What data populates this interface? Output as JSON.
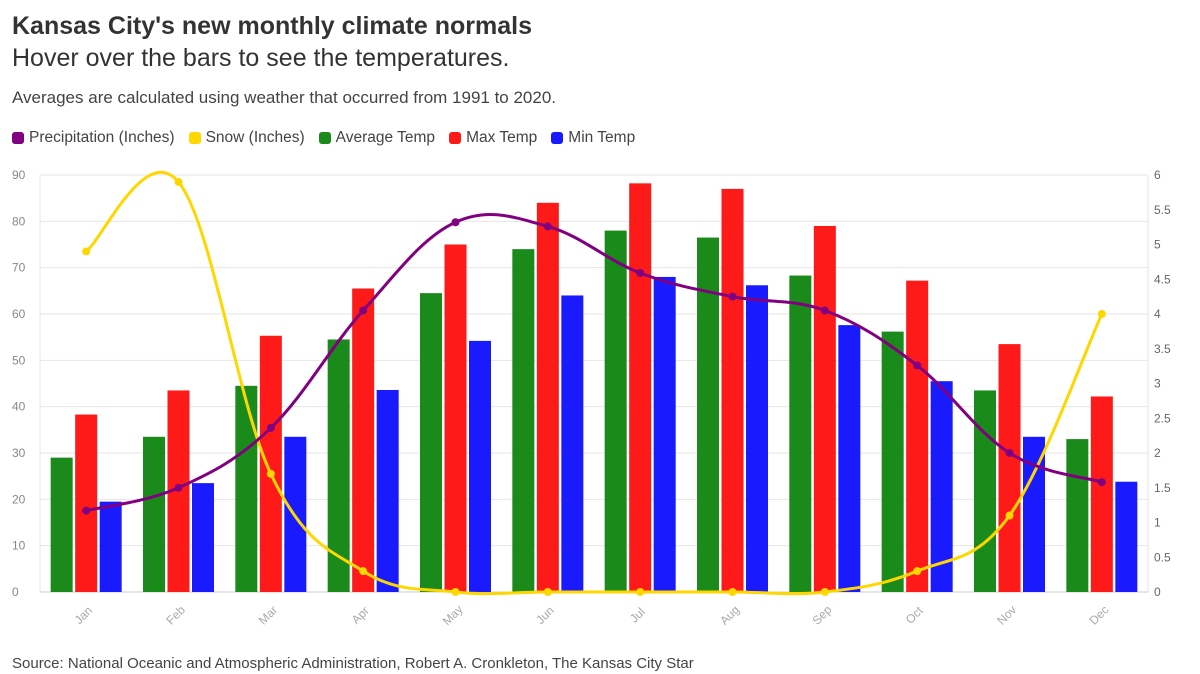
{
  "header": {
    "title": "Kansas City's new monthly climate normals",
    "subtitle": "Hover over the bars to see the temperatures.",
    "description": "Averages are calculated using weather that occurred from 1991 to 2020."
  },
  "source": "Source: National Oceanic and Atmospheric Administration, Robert A. Cronkleton, The Kansas City Star",
  "legend": [
    {
      "label": "Precipitation (Inches)",
      "color": "#800080"
    },
    {
      "label": "Snow (Inches)",
      "color": "#FFD700"
    },
    {
      "label": "Average Temp",
      "color": "#1A8A1A"
    },
    {
      "label": "Max Temp",
      "color": "#FF1A1A"
    },
    {
      "label": "Min Temp",
      "color": "#1A1AFF"
    }
  ],
  "chart_data": {
    "type": "bar",
    "categories": [
      "Jan",
      "Feb",
      "Mar",
      "Apr",
      "May",
      "Jun",
      "Jul",
      "Aug",
      "Sep",
      "Oct",
      "Nov",
      "Dec"
    ],
    "ylim": [
      0,
      90
    ],
    "y_ticks": [
      0,
      10,
      20,
      30,
      40,
      50,
      60,
      70,
      80,
      90
    ],
    "y2lim": [
      0,
      6
    ],
    "y2_ticks": [
      "0",
      "0.5",
      "1",
      "1.5",
      "2",
      "2.5",
      "3",
      "3.5",
      "4",
      "4.5",
      "5",
      "5.5",
      "6"
    ],
    "grid": true,
    "series": [
      {
        "name": "Average Temp",
        "type": "bar",
        "axis": "left",
        "color": "#1A8A1A",
        "values": [
          29,
          33.5,
          44.5,
          54.5,
          64.5,
          74,
          78,
          76.5,
          68.3,
          56.2,
          43.5,
          33
        ]
      },
      {
        "name": "Max Temp",
        "type": "bar",
        "axis": "left",
        "color": "#FF1A1A",
        "values": [
          38.3,
          43.5,
          55.3,
          65.5,
          75,
          84,
          88.2,
          87,
          79,
          67.2,
          53.5,
          42.2
        ]
      },
      {
        "name": "Min Temp",
        "type": "bar",
        "axis": "left",
        "color": "#1A1AFF",
        "values": [
          19.5,
          23.5,
          33.5,
          43.6,
          54.2,
          64,
          68,
          66.2,
          57.6,
          45.5,
          33.5,
          23.8
        ]
      },
      {
        "name": "Precipitation (Inches)",
        "type": "line",
        "axis": "right",
        "color": "#800080",
        "values": [
          1.17,
          1.5,
          2.36,
          4.05,
          5.32,
          5.26,
          4.59,
          4.25,
          4.05,
          3.26,
          2.0,
          1.58
        ]
      },
      {
        "name": "Snow (Inches)",
        "type": "line",
        "axis": "right",
        "color": "#FFD700",
        "values": [
          4.9,
          5.9,
          1.7,
          0.3,
          0,
          0,
          0,
          0,
          0,
          0.3,
          1.1,
          4.0
        ]
      }
    ]
  }
}
